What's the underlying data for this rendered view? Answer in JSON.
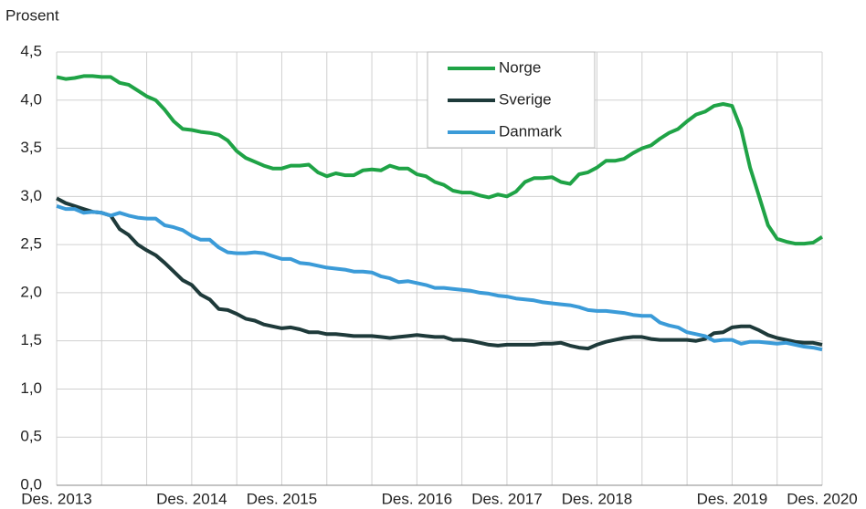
{
  "chart_data": {
    "type": "line",
    "y_label": "Prosent",
    "categories": [
      "Des. 2013",
      null,
      null,
      null,
      null,
      null,
      null,
      null,
      null,
      null,
      null,
      null,
      null,
      null,
      null,
      "Des. 2014",
      null,
      null,
      null,
      null,
      null,
      null,
      null,
      null,
      null,
      "Des. 2015",
      null,
      null,
      null,
      null,
      null,
      null,
      null,
      null,
      null,
      null,
      null,
      null,
      null,
      null,
      "Des. 2016",
      null,
      null,
      null,
      null,
      null,
      null,
      null,
      null,
      null,
      "Des. 2017",
      null,
      null,
      null,
      null,
      null,
      null,
      null,
      null,
      null,
      "Des. 2018",
      null,
      null,
      null,
      null,
      null,
      null,
      null,
      null,
      null,
      null,
      null,
      null,
      null,
      null,
      "Des. 2019",
      null,
      null,
      null,
      null,
      null,
      null,
      null,
      null,
      null,
      "Des. 2020"
    ],
    "series": [
      {
        "name": "Norge",
        "color": "#1fa346",
        "values": [
          4.24,
          4.22,
          4.23,
          4.25,
          4.25,
          4.24,
          4.24,
          4.18,
          4.16,
          4.1,
          4.04,
          4.0,
          3.9,
          3.78,
          3.7,
          3.69,
          3.67,
          3.66,
          3.64,
          3.58,
          3.47,
          3.4,
          3.36,
          3.32,
          3.29,
          3.29,
          3.32,
          3.32,
          3.33,
          3.25,
          3.21,
          3.24,
          3.22,
          3.22,
          3.27,
          3.28,
          3.27,
          3.32,
          3.29,
          3.29,
          3.23,
          3.21,
          3.15,
          3.12,
          3.06,
          3.04,
          3.04,
          3.01,
          2.99,
          3.02,
          3.0,
          3.05,
          3.15,
          3.19,
          3.19,
          3.2,
          3.15,
          3.13,
          3.23,
          3.25,
          3.3,
          3.37,
          3.37,
          3.39,
          3.45,
          3.5,
          3.53,
          3.6,
          3.66,
          3.7,
          3.78,
          3.85,
          3.88,
          3.94,
          3.96,
          3.94,
          3.7,
          3.3,
          3.0,
          2.7,
          2.56,
          2.53,
          2.51,
          2.51,
          2.52,
          2.58
        ]
      },
      {
        "name": "Sverige",
        "color": "#1e3a3a",
        "values": [
          2.98,
          2.93,
          2.9,
          2.87,
          2.84,
          2.83,
          2.8,
          2.66,
          2.6,
          2.5,
          2.44,
          2.39,
          2.31,
          2.22,
          2.13,
          2.08,
          1.98,
          1.93,
          1.83,
          1.82,
          1.78,
          1.73,
          1.71,
          1.67,
          1.65,
          1.63,
          1.64,
          1.62,
          1.59,
          1.59,
          1.57,
          1.57,
          1.56,
          1.55,
          1.55,
          1.55,
          1.54,
          1.53,
          1.54,
          1.55,
          1.56,
          1.55,
          1.54,
          1.54,
          1.51,
          1.51,
          1.5,
          1.48,
          1.46,
          1.45,
          1.46,
          1.46,
          1.46,
          1.46,
          1.47,
          1.47,
          1.48,
          1.45,
          1.43,
          1.42,
          1.46,
          1.49,
          1.51,
          1.53,
          1.54,
          1.54,
          1.52,
          1.51,
          1.51,
          1.51,
          1.51,
          1.5,
          1.52,
          1.58,
          1.59,
          1.64,
          1.65,
          1.65,
          1.61,
          1.56,
          1.53,
          1.51,
          1.49,
          1.48,
          1.48,
          1.46
        ]
      },
      {
        "name": "Danmark",
        "color": "#3b9bd8",
        "values": [
          2.9,
          2.87,
          2.87,
          2.83,
          2.84,
          2.83,
          2.8,
          2.83,
          2.8,
          2.78,
          2.77,
          2.77,
          2.7,
          2.68,
          2.65,
          2.59,
          2.55,
          2.55,
          2.47,
          2.42,
          2.41,
          2.41,
          2.42,
          2.41,
          2.38,
          2.35,
          2.35,
          2.31,
          2.3,
          2.28,
          2.26,
          2.25,
          2.24,
          2.22,
          2.22,
          2.21,
          2.17,
          2.15,
          2.11,
          2.12,
          2.1,
          2.08,
          2.05,
          2.05,
          2.04,
          2.03,
          2.02,
          2.0,
          1.99,
          1.97,
          1.96,
          1.94,
          1.93,
          1.92,
          1.9,
          1.89,
          1.88,
          1.87,
          1.85,
          1.82,
          1.81,
          1.81,
          1.8,
          1.79,
          1.77,
          1.76,
          1.76,
          1.69,
          1.66,
          1.64,
          1.59,
          1.57,
          1.55,
          1.5,
          1.51,
          1.51,
          1.47,
          1.49,
          1.49,
          1.48,
          1.47,
          1.48,
          1.46,
          1.44,
          1.43,
          1.41
        ]
      }
    ],
    "ylim": [
      0,
      4.5
    ],
    "yticks": [
      {
        "value": 0,
        "label": "0,0"
      },
      {
        "value": 0.5,
        "label": "0,5"
      },
      {
        "value": 1,
        "label": "1,0"
      },
      {
        "value": 1.5,
        "label": "1,5"
      },
      {
        "value": 2,
        "label": "2,0"
      },
      {
        "value": 2.5,
        "label": "2,5"
      },
      {
        "value": 3,
        "label": "3,0"
      },
      {
        "value": 3.5,
        "label": "3,5"
      },
      {
        "value": 4,
        "label": "4,0"
      },
      {
        "value": 4.5,
        "label": "4,5"
      }
    ],
    "grid": true,
    "legend": "upper center"
  }
}
